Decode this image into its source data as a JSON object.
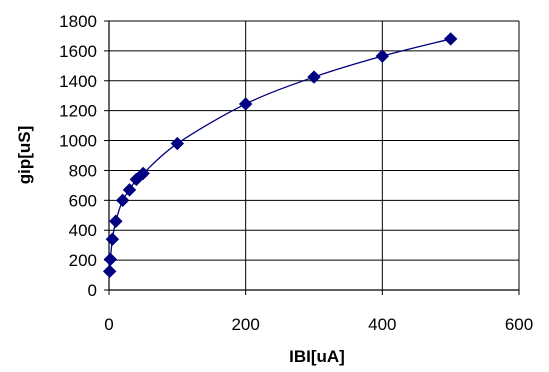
{
  "chart_data": {
    "type": "scatter",
    "title": "",
    "xlabel": "IBI[uA]",
    "ylabel": "gip[uS]",
    "xlim": [
      0,
      600
    ],
    "ylim": [
      0,
      1800
    ],
    "x_ticks": [
      0,
      200,
      400,
      600
    ],
    "y_ticks": [
      0,
      200,
      400,
      600,
      800,
      1000,
      1200,
      1400,
      1600,
      1800
    ],
    "grid": "vertical gridlines at x ticks, horizontal gridlines at y ticks",
    "legend": "none",
    "marker": "diamond",
    "color": "#000080",
    "trendline": "smooth curve through points",
    "series": [
      {
        "x": [
          1,
          2,
          5,
          10,
          20,
          30,
          40,
          50,
          100,
          200,
          300,
          400,
          500
        ],
        "y": [
          125,
          205,
          340,
          460,
          600,
          670,
          740,
          780,
          980,
          1245,
          1425,
          1565,
          1680
        ]
      }
    ]
  }
}
